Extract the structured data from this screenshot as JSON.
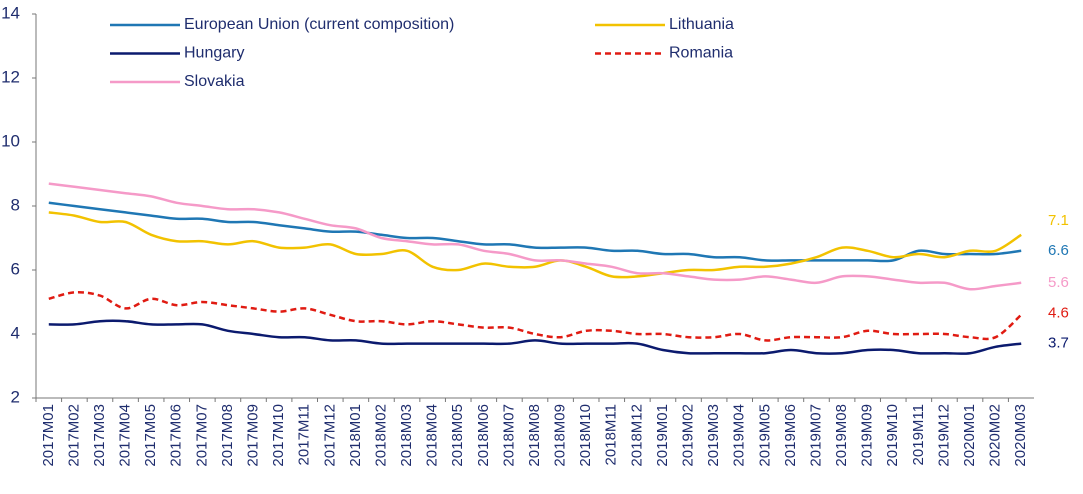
{
  "chart_data": {
    "type": "line",
    "categories": [
      "2017M01",
      "2017M02",
      "2017M03",
      "2017M04",
      "2017M05",
      "2017M06",
      "2017M07",
      "2017M08",
      "2017M09",
      "2017M10",
      "2017M11",
      "2017M12",
      "2018M01",
      "2018M02",
      "2018M03",
      "2018M04",
      "2018M05",
      "2018M06",
      "2018M07",
      "2018M08",
      "2018M09",
      "2018M10",
      "2018M11",
      "2018M12",
      "2019M01",
      "2019M02",
      "2019M03",
      "2019M04",
      "2019M05",
      "2019M06",
      "2019M07",
      "2019M08",
      "2019M09",
      "2019M10",
      "2019M11",
      "2019M12",
      "2020M01",
      "2020M02",
      "2020M03"
    ],
    "series": [
      {
        "name": "European Union (current composition)",
        "color": "#1f77b4",
        "linestyle": "solid",
        "values": [
          8.1,
          8.0,
          7.9,
          7.8,
          7.7,
          7.6,
          7.6,
          7.5,
          7.5,
          7.4,
          7.3,
          7.2,
          7.2,
          7.1,
          7.0,
          7.0,
          6.9,
          6.8,
          6.8,
          6.7,
          6.7,
          6.7,
          6.6,
          6.6,
          6.5,
          6.5,
          6.4,
          6.4,
          6.3,
          6.3,
          6.3,
          6.3,
          6.3,
          6.3,
          6.6,
          6.5,
          6.5,
          6.5,
          6.6
        ]
      },
      {
        "name": "Lithuania",
        "color": "#f2c200",
        "linestyle": "solid",
        "values": [
          7.8,
          7.7,
          7.5,
          7.5,
          7.1,
          6.9,
          6.9,
          6.8,
          6.9,
          6.7,
          6.7,
          6.8,
          6.5,
          6.5,
          6.6,
          6.1,
          6.0,
          6.2,
          6.1,
          6.1,
          6.3,
          6.1,
          5.8,
          5.8,
          5.9,
          6.0,
          6.0,
          6.1,
          6.1,
          6.2,
          6.4,
          6.7,
          6.6,
          6.4,
          6.5,
          6.4,
          6.6,
          6.6,
          7.1
        ]
      },
      {
        "name": "Hungary",
        "color": "#0b1a6e",
        "linestyle": "solid",
        "values": [
          4.3,
          4.3,
          4.4,
          4.4,
          4.3,
          4.3,
          4.3,
          4.1,
          4.0,
          3.9,
          3.9,
          3.8,
          3.8,
          3.7,
          3.7,
          3.7,
          3.7,
          3.7,
          3.7,
          3.8,
          3.7,
          3.7,
          3.7,
          3.7,
          3.5,
          3.4,
          3.4,
          3.4,
          3.4,
          3.5,
          3.4,
          3.4,
          3.5,
          3.5,
          3.4,
          3.4,
          3.4,
          3.6,
          3.7
        ]
      },
      {
        "name": "Romania",
        "color": "#e01b12",
        "linestyle": "dashed",
        "values": [
          5.1,
          5.3,
          5.2,
          4.8,
          5.1,
          4.9,
          5.0,
          4.9,
          4.8,
          4.7,
          4.8,
          4.6,
          4.4,
          4.4,
          4.3,
          4.4,
          4.3,
          4.2,
          4.2,
          4.0,
          3.9,
          4.1,
          4.1,
          4.0,
          4.0,
          3.9,
          3.9,
          4.0,
          3.8,
          3.9,
          3.9,
          3.9,
          4.1,
          4.0,
          4.0,
          4.0,
          3.9,
          3.9,
          4.6
        ]
      },
      {
        "name": "Slovakia",
        "color": "#f59ac8",
        "linestyle": "solid",
        "values": [
          8.7,
          8.6,
          8.5,
          8.4,
          8.3,
          8.1,
          8.0,
          7.9,
          7.9,
          7.8,
          7.6,
          7.4,
          7.3,
          7.0,
          6.9,
          6.8,
          6.8,
          6.6,
          6.5,
          6.3,
          6.3,
          6.2,
          6.1,
          5.9,
          5.9,
          5.8,
          5.7,
          5.7,
          5.8,
          5.7,
          5.6,
          5.8,
          5.8,
          5.7,
          5.6,
          5.6,
          5.4,
          5.5,
          5.6
        ]
      }
    ],
    "ylim": [
      2,
      14
    ],
    "yticks": [
      2,
      4,
      6,
      8,
      10,
      12,
      14
    ],
    "grid": false,
    "legend": "top",
    "end_labels": true
  }
}
